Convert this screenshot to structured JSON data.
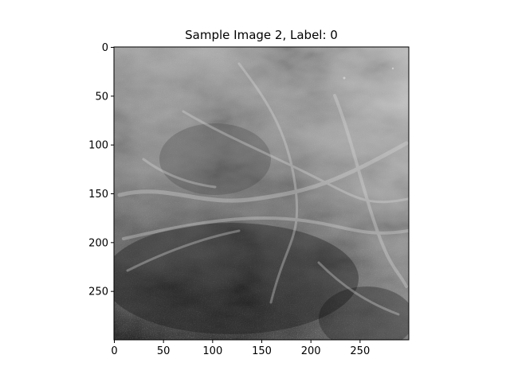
{
  "figure": {
    "title": "Sample Image 2, Label: 0"
  },
  "image": {
    "description_kind": "grayscale mammogram patch",
    "colormap": "gray",
    "width": 300,
    "height": 300
  },
  "axes": {
    "x": {
      "ticks": [
        0,
        50,
        100,
        150,
        200,
        250
      ],
      "labels": [
        "0",
        "50",
        "100",
        "150",
        "200",
        "250"
      ],
      "range": [
        0,
        300
      ]
    },
    "y": {
      "ticks": [
        0,
        50,
        100,
        150,
        200,
        250
      ],
      "labels": [
        "0",
        "50",
        "100",
        "150",
        "200",
        "250"
      ],
      "range": [
        0,
        300
      ],
      "inverted": true
    }
  }
}
